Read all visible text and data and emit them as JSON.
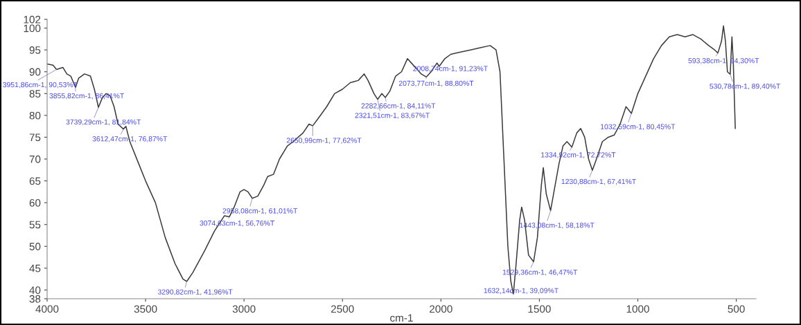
{
  "chart_data": {
    "type": "line",
    "xlabel": "cm-1",
    "xlim": [
      4000,
      400
    ],
    "xticks": [
      4000,
      3500,
      3000,
      2500,
      2000,
      1500,
      1000,
      500
    ],
    "ylim": [
      38,
      102
    ],
    "yticks": [
      38,
      40,
      45,
      50,
      55,
      60,
      65,
      70,
      75,
      80,
      85,
      90,
      95,
      100,
      102
    ],
    "grid": false,
    "legend": false,
    "marker": "none",
    "line_style": "solid",
    "series": [
      {
        "color": "#3a3a3a",
        "x": [
          4000,
          3970,
          3951.86,
          3920,
          3900,
          3880,
          3855.82,
          3840,
          3810,
          3780,
          3760,
          3739.29,
          3720,
          3700,
          3680,
          3660,
          3640,
          3612.47,
          3600,
          3580,
          3540,
          3500,
          3450,
          3400,
          3350,
          3310,
          3290.82,
          3260,
          3200,
          3150,
          3100,
          3074.63,
          3050,
          3020,
          3000,
          2980,
          2958.08,
          2930,
          2900,
          2880,
          2850,
          2820,
          2780,
          2750,
          2700,
          2670,
          2650.99,
          2620,
          2580,
          2540,
          2500,
          2460,
          2420,
          2390,
          2370,
          2340,
          2321.51,
          2300,
          2282.66,
          2260,
          2230,
          2200,
          2170,
          2150,
          2120,
          2100,
          2073.77,
          2050,
          2020,
          2008.74,
          1980,
          1950,
          1900,
          1850,
          1800,
          1750,
          1720,
          1700,
          1680,
          1660,
          1645,
          1632.14,
          1620,
          1600,
          1590,
          1575,
          1555,
          1529.36,
          1510,
          1490,
          1480,
          1465,
          1443.08,
          1420,
          1400,
          1380,
          1360,
          1334.92,
          1310,
          1290,
          1270,
          1250,
          1230.88,
          1210,
          1180,
          1150,
          1120,
          1090,
          1060,
          1032.59,
          1000,
          960,
          920,
          880,
          840,
          800,
          760,
          720,
          680,
          640,
          610,
          593.38,
          575,
          565,
          555,
          545,
          530.78,
          522,
          515,
          505
        ],
        "values": [
          91.8,
          91.5,
          90.53,
          91,
          89.5,
          89,
          86.41,
          88.5,
          89.5,
          89,
          86,
          81.84,
          84,
          85,
          84.5,
          82,
          78,
          76.87,
          77.5,
          74,
          69.5,
          65,
          60,
          52,
          46,
          42.5,
          41.96,
          44,
          49,
          53.5,
          57,
          56.76,
          59,
          62.5,
          63,
          62.5,
          61.01,
          61.5,
          64,
          66,
          66.5,
          70,
          73,
          74,
          76,
          78,
          77.62,
          79.5,
          82,
          85,
          86,
          87.5,
          88,
          89.5,
          88,
          85,
          83.67,
          85,
          84.11,
          85.5,
          89,
          90,
          93,
          92,
          90.5,
          89.5,
          88.8,
          90,
          92,
          91.23,
          93,
          94,
          94.5,
          95,
          95.5,
          96,
          95,
          90,
          70,
          50,
          42,
          39.09,
          45,
          56,
          59,
          56,
          48,
          46.47,
          52,
          64,
          68,
          62,
          58.18,
          64,
          69,
          73,
          74,
          72.72,
          76,
          77,
          75,
          70,
          67.41,
          70,
          74,
          75,
          75.5,
          78,
          82,
          80.45,
          85,
          89,
          93,
          96,
          98,
          98.5,
          98,
          98.5,
          97.5,
          96,
          95,
          94.3,
          97,
          100.5,
          97,
          90,
          89.4,
          98,
          92,
          77
        ]
      }
    ],
    "annotations": [
      {
        "text": "3951,86cm-1, 90,53%T",
        "x": 3951.86,
        "y": 90.53
      },
      {
        "text": "3855,82cm-1, 86,41%T",
        "x": 3855.82,
        "y": 86.41
      },
      {
        "text": "3739,29cm-1, 81,84%T",
        "x": 3739.29,
        "y": 81.84
      },
      {
        "text": "3612,47cm-1, 76,87%T",
        "x": 3612.47,
        "y": 76.87
      },
      {
        "text": "3290,82cm-1, 41,96%T",
        "x": 3290.82,
        "y": 41.96
      },
      {
        "text": "3074,63cm-1, 56,76%T",
        "x": 3074.63,
        "y": 56.76
      },
      {
        "text": "2958,08cm-1, 61,01%T",
        "x": 2958.08,
        "y": 61.01
      },
      {
        "text": "2650,99cm-1, 77,62%T",
        "x": 2650.99,
        "y": 77.62
      },
      {
        "text": "2282,66cm-1, 84,11%T",
        "x": 2282.66,
        "y": 84.11
      },
      {
        "text": "2321,51cm-1, 83,67%T",
        "x": 2321.51,
        "y": 83.67
      },
      {
        "text": "2073,77cm-1, 88,80%T",
        "x": 2073.77,
        "y": 88.8
      },
      {
        "text": "2008,74cm-1, 91,23%T",
        "x": 2008.74,
        "y": 91.23
      },
      {
        "text": "1632,14cm-1, 39,09%T",
        "x": 1632.14,
        "y": 39.09
      },
      {
        "text": "1529,36cm-1, 46,47%T",
        "x": 1529.36,
        "y": 46.47
      },
      {
        "text": "1443,08cm-1, 58,18%T",
        "x": 1443.08,
        "y": 58.18
      },
      {
        "text": "1334,92cm-1, 72,72%T",
        "x": 1334.92,
        "y": 72.72
      },
      {
        "text": "1230,88cm-1, 67,41%T",
        "x": 1230.88,
        "y": 67.41
      },
      {
        "text": "1032,59cm-1, 80,45%T",
        "x": 1032.59,
        "y": 80.45
      },
      {
        "text": "593,38cm-1, 94,30%T",
        "x": 593.38,
        "y": 94.3
      },
      {
        "text": "530,78cm-1, 89,40%T",
        "x": 530.78,
        "y": 89.4
      }
    ]
  }
}
